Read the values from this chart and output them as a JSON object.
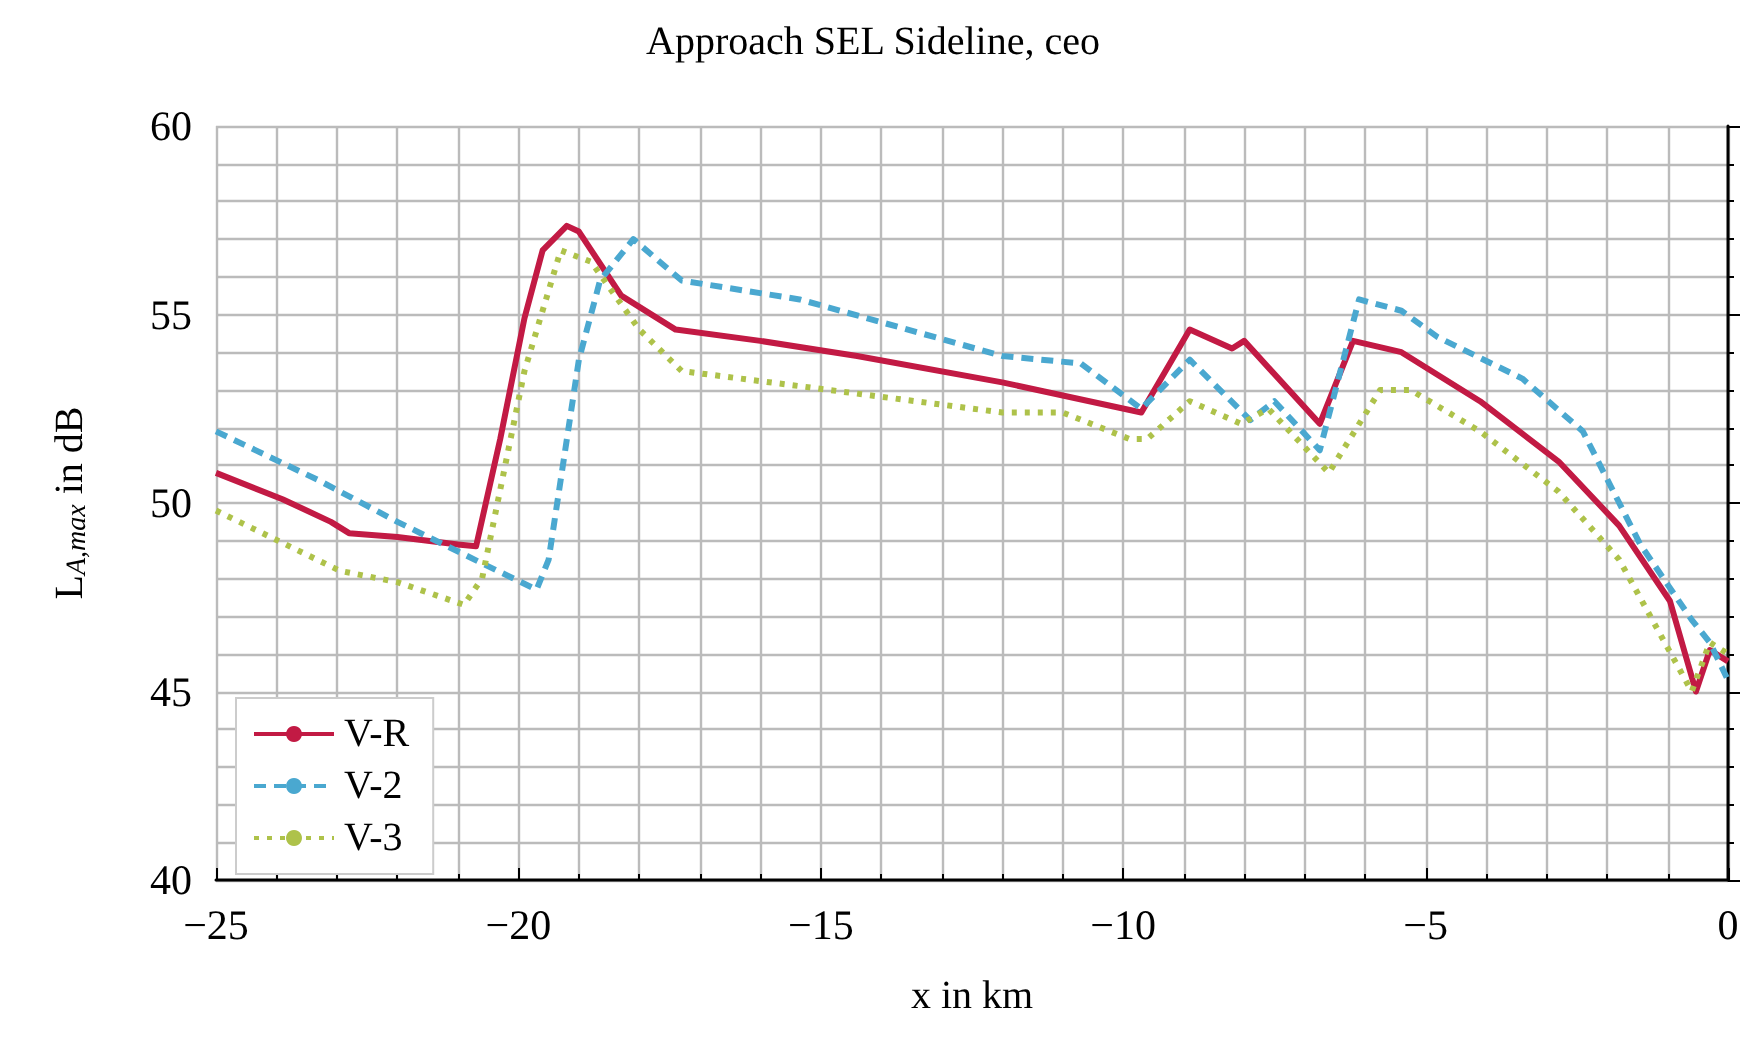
{
  "chart_data": {
    "type": "line",
    "title": "Approach SEL Sideline, ceo",
    "xlabel": "x in km",
    "ylabel": "L$_{A,max}$ in dB",
    "xlim": [
      -25,
      0
    ],
    "xticks": [
      {
        "value": -25,
        "label": "−25"
      },
      {
        "value": -20,
        "label": "−20"
      },
      {
        "value": -15,
        "label": "−15"
      },
      {
        "value": -10,
        "label": "−10"
      },
      {
        "value": -5,
        "label": "−5"
      },
      0
    ],
    "ylim": [
      40,
      60
    ],
    "yticks": [
      40,
      45,
      50,
      55,
      60
    ],
    "grid": true,
    "legend": "bottom left",
    "marker": "none",
    "series": [
      {
        "name": "V-R",
        "color": "#c21a44",
        "line_style": "solid",
        "x": [
          -25,
          -23.9,
          -23.1,
          -22.8,
          -22,
          -21,
          -20.7,
          -20.3,
          -19.9,
          -19.6,
          -19.2,
          -19,
          -18.3,
          -17.4,
          -16,
          -14.4,
          -12,
          -9.7,
          -8.9,
          -8.2,
          -8,
          -6.75,
          -6.2,
          -5.4,
          -4.1,
          -2.8,
          -1.8,
          -0.96,
          -0.53,
          -0.3,
          0
        ],
        "values": [
          50.8,
          50.1,
          49.5,
          49.2,
          49.1,
          48.9,
          48.85,
          51.7,
          54.9,
          56.7,
          57.35,
          57.2,
          55.5,
          54.6,
          54.3,
          53.9,
          53.2,
          52.4,
          54.6,
          54.1,
          54.3,
          52.1,
          54.3,
          54,
          52.7,
          51.1,
          49.4,
          47.4,
          45,
          46.1,
          45.8
        ]
      },
      {
        "name": "V-2",
        "color": "#4aa8d0",
        "line_style": "dashed",
        "x": [
          -25,
          -23.3,
          -22,
          -20.6,
          -19.7,
          -19.5,
          -19,
          -18.65,
          -18.1,
          -17.3,
          -15.35,
          -12,
          -10.7,
          -9.7,
          -8.9,
          -7.9,
          -7.5,
          -6.75,
          -6.1,
          -5.4,
          -4.8,
          -3.4,
          -2.4,
          -1.45,
          -0.6,
          -0.3,
          0
        ],
        "values": [
          51.9,
          50.6,
          49.5,
          48.4,
          47.7,
          48.5,
          53.8,
          55.9,
          57,
          55.9,
          55.4,
          53.9,
          53.7,
          52.5,
          53.8,
          52.2,
          52.7,
          51.4,
          55.4,
          55.1,
          54.4,
          53.3,
          51.9,
          48.9,
          46.9,
          46.3,
          45.3
        ]
      },
      {
        "name": "V-3",
        "color": "#aec24a",
        "line_style": "dotted",
        "x": [
          -25,
          -22.95,
          -22,
          -20.9,
          -20.6,
          -19.9,
          -19.3,
          -18.8,
          -18,
          -17.3,
          -15.35,
          -12,
          -11,
          -9.9,
          -9.6,
          -8.9,
          -8.05,
          -7.6,
          -6.6,
          -5.75,
          -5.25,
          -4.1,
          -2.8,
          -1.8,
          -0.6,
          -0.3,
          0
        ],
        "values": [
          49.8,
          48.2,
          47.9,
          47.3,
          48,
          53.5,
          56.7,
          56.4,
          54.6,
          53.5,
          53.1,
          52.4,
          52.4,
          51.7,
          51.7,
          52.7,
          52.1,
          52.5,
          50.8,
          53,
          53,
          51.9,
          50.3,
          48.5,
          45,
          46.3,
          46
        ]
      }
    ]
  }
}
